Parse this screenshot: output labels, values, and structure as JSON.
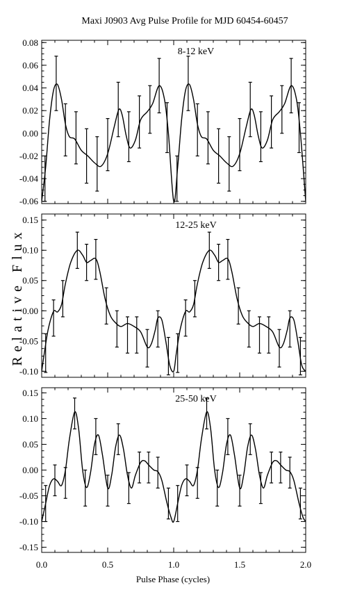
{
  "figure": {
    "title": "Maxi J0903 Avg Pulse Profile for MJD 60454-60457",
    "ylabel": "Relative Flux",
    "xlabel": "Pulse Phase (cycles)",
    "x_ticks": [
      "0.0",
      "0.5",
      "1.0",
      "1.5",
      "2.0"
    ]
  },
  "chart_data": [
    {
      "type": "line",
      "label": "8-12 keV",
      "xlim": [
        0,
        2
      ],
      "ylim": [
        -0.062,
        0.082
      ],
      "y_ticks": [
        -0.06,
        -0.04,
        -0.02,
        0.0,
        0.02,
        0.04,
        0.06,
        0.08
      ],
      "y_tick_labels": [
        "-0.06",
        "-0.04",
        "-0.02",
        "0.00",
        "0.02",
        "0.04",
        "0.06",
        "0.08"
      ],
      "points": [
        {
          "x": 0.025,
          "y": -0.04,
          "err": 0.02
        },
        {
          "x": 0.11,
          "y": 0.044,
          "err": 0.024
        },
        {
          "x": 0.18,
          "y": 0.003,
          "err": 0.023
        },
        {
          "x": 0.26,
          "y": -0.004,
          "err": 0.023
        },
        {
          "x": 0.34,
          "y": -0.02,
          "err": 0.024
        },
        {
          "x": 0.42,
          "y": -0.027,
          "err": 0.024
        },
        {
          "x": 0.5,
          "y": -0.01,
          "err": 0.023
        },
        {
          "x": 0.58,
          "y": 0.021,
          "err": 0.024
        },
        {
          "x": 0.66,
          "y": -0.003,
          "err": 0.022
        },
        {
          "x": 0.74,
          "y": 0.01,
          "err": 0.023
        },
        {
          "x": 0.82,
          "y": 0.021,
          "err": 0.021
        },
        {
          "x": 0.89,
          "y": 0.042,
          "err": 0.024
        },
        {
          "x": 0.95,
          "y": 0.005,
          "err": 0.022
        },
        {
          "x": 1.025,
          "y": -0.04,
          "err": 0.02
        },
        {
          "x": 1.11,
          "y": 0.044,
          "err": 0.024
        },
        {
          "x": 1.18,
          "y": 0.003,
          "err": 0.023
        },
        {
          "x": 1.26,
          "y": -0.004,
          "err": 0.023
        },
        {
          "x": 1.34,
          "y": -0.02,
          "err": 0.024
        },
        {
          "x": 1.42,
          "y": -0.027,
          "err": 0.024
        },
        {
          "x": 1.5,
          "y": -0.01,
          "err": 0.023
        },
        {
          "x": 1.58,
          "y": 0.021,
          "err": 0.024
        },
        {
          "x": 1.66,
          "y": -0.003,
          "err": 0.022
        },
        {
          "x": 1.74,
          "y": 0.01,
          "err": 0.023
        },
        {
          "x": 1.82,
          "y": 0.021,
          "err": 0.021
        },
        {
          "x": 1.89,
          "y": 0.042,
          "err": 0.024
        },
        {
          "x": 1.95,
          "y": 0.005,
          "err": 0.022
        }
      ],
      "curve": [
        [
          0.0,
          -0.06
        ],
        [
          0.03,
          -0.03
        ],
        [
          0.06,
          0.012
        ],
        [
          0.09,
          0.038
        ],
        [
          0.12,
          0.043
        ],
        [
          0.15,
          0.03
        ],
        [
          0.18,
          0.008
        ],
        [
          0.21,
          -0.003
        ],
        [
          0.25,
          -0.005
        ],
        [
          0.3,
          -0.015
        ],
        [
          0.35,
          -0.02
        ],
        [
          0.4,
          -0.026
        ],
        [
          0.45,
          -0.029
        ],
        [
          0.5,
          -0.018
        ],
        [
          0.55,
          0.006
        ],
        [
          0.585,
          0.021
        ],
        [
          0.61,
          0.016
        ],
        [
          0.64,
          -0.002
        ],
        [
          0.67,
          -0.013
        ],
        [
          0.71,
          -0.006
        ],
        [
          0.75,
          0.012
        ],
        [
          0.8,
          0.019
        ],
        [
          0.84,
          0.026
        ],
        [
          0.89,
          0.042
        ],
        [
          0.93,
          0.03
        ],
        [
          0.96,
          0.0
        ],
        [
          1.0,
          -0.06
        ],
        [
          1.03,
          -0.03
        ],
        [
          1.06,
          0.012
        ],
        [
          1.09,
          0.038
        ],
        [
          1.12,
          0.043
        ],
        [
          1.15,
          0.03
        ],
        [
          1.18,
          0.008
        ],
        [
          1.21,
          -0.003
        ],
        [
          1.25,
          -0.005
        ],
        [
          1.3,
          -0.015
        ],
        [
          1.35,
          -0.02
        ],
        [
          1.4,
          -0.026
        ],
        [
          1.45,
          -0.029
        ],
        [
          1.5,
          -0.018
        ],
        [
          1.55,
          0.006
        ],
        [
          1.585,
          0.021
        ],
        [
          1.61,
          0.016
        ],
        [
          1.64,
          -0.002
        ],
        [
          1.67,
          -0.013
        ],
        [
          1.71,
          -0.006
        ],
        [
          1.75,
          0.012
        ],
        [
          1.8,
          0.019
        ],
        [
          1.84,
          0.026
        ],
        [
          1.89,
          0.042
        ],
        [
          1.93,
          0.03
        ],
        [
          1.96,
          0.0
        ],
        [
          2.0,
          -0.06
        ]
      ]
    },
    {
      "type": "line",
      "label": "12-25 keV",
      "xlim": [
        0,
        2
      ],
      "ylim": [
        -0.11,
        0.16
      ],
      "y_ticks": [
        -0.1,
        -0.05,
        0.0,
        0.05,
        0.1,
        0.15
      ],
      "y_tick_labels": [
        "-0.10",
        "-0.05",
        "0.00",
        "0.05",
        "0.10",
        "0.15"
      ],
      "points": [
        {
          "x": 0.03,
          "y": -0.07,
          "err": 0.032
        },
        {
          "x": 0.09,
          "y": -0.012,
          "err": 0.03
        },
        {
          "x": 0.16,
          "y": 0.02,
          "err": 0.03
        },
        {
          "x": 0.27,
          "y": 0.1,
          "err": 0.03
        },
        {
          "x": 0.34,
          "y": 0.08,
          "err": 0.03
        },
        {
          "x": 0.41,
          "y": 0.085,
          "err": 0.033
        },
        {
          "x": 0.49,
          "y": 0.008,
          "err": 0.03
        },
        {
          "x": 0.57,
          "y": -0.03,
          "err": 0.03
        },
        {
          "x": 0.65,
          "y": -0.04,
          "err": 0.03
        },
        {
          "x": 0.72,
          "y": -0.04,
          "err": 0.03
        },
        {
          "x": 0.8,
          "y": -0.062,
          "err": 0.031
        },
        {
          "x": 0.88,
          "y": -0.03,
          "err": 0.03
        },
        {
          "x": 0.96,
          "y": -0.075,
          "err": 0.031
        },
        {
          "x": 1.03,
          "y": -0.07,
          "err": 0.032
        },
        {
          "x": 1.09,
          "y": -0.012,
          "err": 0.03
        },
        {
          "x": 1.16,
          "y": 0.02,
          "err": 0.03
        },
        {
          "x": 1.27,
          "y": 0.1,
          "err": 0.03
        },
        {
          "x": 1.34,
          "y": 0.08,
          "err": 0.03
        },
        {
          "x": 1.41,
          "y": 0.085,
          "err": 0.033
        },
        {
          "x": 1.49,
          "y": 0.008,
          "err": 0.03
        },
        {
          "x": 1.57,
          "y": -0.03,
          "err": 0.03
        },
        {
          "x": 1.65,
          "y": -0.04,
          "err": 0.03
        },
        {
          "x": 1.72,
          "y": -0.04,
          "err": 0.03
        },
        {
          "x": 1.8,
          "y": -0.062,
          "err": 0.031
        },
        {
          "x": 1.88,
          "y": -0.03,
          "err": 0.03
        },
        {
          "x": 1.96,
          "y": -0.075,
          "err": 0.031
        }
      ],
      "curve": [
        [
          0.0,
          -0.1
        ],
        [
          0.02,
          -0.07
        ],
        [
          0.05,
          -0.03
        ],
        [
          0.09,
          -0.001
        ],
        [
          0.12,
          -0.002
        ],
        [
          0.15,
          0.01
        ],
        [
          0.18,
          0.045
        ],
        [
          0.22,
          0.08
        ],
        [
          0.27,
          0.1
        ],
        [
          0.31,
          0.092
        ],
        [
          0.34,
          0.08
        ],
        [
          0.37,
          0.083
        ],
        [
          0.41,
          0.086
        ],
        [
          0.44,
          0.065
        ],
        [
          0.48,
          0.02
        ],
        [
          0.52,
          -0.008
        ],
        [
          0.56,
          -0.02
        ],
        [
          0.6,
          -0.026
        ],
        [
          0.65,
          -0.021
        ],
        [
          0.7,
          -0.026
        ],
        [
          0.75,
          -0.035
        ],
        [
          0.8,
          -0.06
        ],
        [
          0.83,
          -0.055
        ],
        [
          0.86,
          -0.032
        ],
        [
          0.88,
          -0.012
        ],
        [
          0.91,
          -0.015
        ],
        [
          0.94,
          -0.05
        ],
        [
          0.97,
          -0.09
        ],
        [
          1.0,
          -0.1
        ],
        [
          1.02,
          -0.07
        ],
        [
          1.05,
          -0.03
        ],
        [
          1.09,
          -0.001
        ],
        [
          1.12,
          -0.002
        ],
        [
          1.15,
          0.01
        ],
        [
          1.18,
          0.045
        ],
        [
          1.22,
          0.08
        ],
        [
          1.27,
          0.1
        ],
        [
          1.31,
          0.092
        ],
        [
          1.34,
          0.08
        ],
        [
          1.37,
          0.083
        ],
        [
          1.41,
          0.086
        ],
        [
          1.44,
          0.065
        ],
        [
          1.48,
          0.02
        ],
        [
          1.52,
          -0.008
        ],
        [
          1.56,
          -0.02
        ],
        [
          1.6,
          -0.026
        ],
        [
          1.65,
          -0.021
        ],
        [
          1.7,
          -0.026
        ],
        [
          1.75,
          -0.035
        ],
        [
          1.8,
          -0.06
        ],
        [
          1.83,
          -0.055
        ],
        [
          1.86,
          -0.032
        ],
        [
          1.88,
          -0.012
        ],
        [
          1.91,
          -0.015
        ],
        [
          1.94,
          -0.05
        ],
        [
          1.97,
          -0.09
        ],
        [
          2.0,
          -0.1
        ]
      ]
    },
    {
      "type": "line",
      "label": "25-50 keV",
      "xlim": [
        0,
        2
      ],
      "ylim": [
        -0.16,
        0.16
      ],
      "y_ticks": [
        -0.15,
        -0.1,
        -0.05,
        0.0,
        0.05,
        0.1,
        0.15
      ],
      "y_tick_labels": [
        "-0.15",
        "-0.10",
        "-0.05",
        "0.00",
        "0.05",
        "0.10",
        "0.15"
      ],
      "points": [
        {
          "x": 0.03,
          "y": -0.065,
          "err": 0.035
        },
        {
          "x": 0.1,
          "y": -0.02,
          "err": 0.03
        },
        {
          "x": 0.18,
          "y": -0.025,
          "err": 0.03
        },
        {
          "x": 0.25,
          "y": 0.11,
          "err": 0.03
        },
        {
          "x": 0.33,
          "y": -0.035,
          "err": 0.035
        },
        {
          "x": 0.41,
          "y": 0.065,
          "err": 0.035
        },
        {
          "x": 0.5,
          "y": -0.04,
          "err": 0.03
        },
        {
          "x": 0.58,
          "y": 0.06,
          "err": 0.03
        },
        {
          "x": 0.66,
          "y": -0.035,
          "err": 0.03
        },
        {
          "x": 0.74,
          "y": 0.005,
          "err": 0.03
        },
        {
          "x": 0.81,
          "y": 0.005,
          "err": 0.03
        },
        {
          "x": 0.88,
          "y": -0.005,
          "err": 0.03
        },
        {
          "x": 0.96,
          "y": -0.065,
          "err": 0.03
        },
        {
          "x": 1.03,
          "y": -0.065,
          "err": 0.035
        },
        {
          "x": 1.1,
          "y": -0.02,
          "err": 0.03
        },
        {
          "x": 1.18,
          "y": -0.025,
          "err": 0.03
        },
        {
          "x": 1.25,
          "y": 0.11,
          "err": 0.03
        },
        {
          "x": 1.33,
          "y": -0.035,
          "err": 0.035
        },
        {
          "x": 1.41,
          "y": 0.065,
          "err": 0.035
        },
        {
          "x": 1.5,
          "y": -0.04,
          "err": 0.03
        },
        {
          "x": 1.58,
          "y": 0.06,
          "err": 0.03
        },
        {
          "x": 1.66,
          "y": -0.035,
          "err": 0.03
        },
        {
          "x": 1.74,
          "y": 0.005,
          "err": 0.03
        },
        {
          "x": 1.81,
          "y": 0.005,
          "err": 0.03
        },
        {
          "x": 1.88,
          "y": -0.005,
          "err": 0.03
        },
        {
          "x": 1.96,
          "y": -0.065,
          "err": 0.03
        }
      ],
      "curve": [
        [
          0.0,
          -0.1
        ],
        [
          0.03,
          -0.065
        ],
        [
          0.06,
          -0.03
        ],
        [
          0.09,
          -0.017
        ],
        [
          0.12,
          -0.022
        ],
        [
          0.15,
          -0.03
        ],
        [
          0.18,
          0.0
        ],
        [
          0.21,
          0.06
        ],
        [
          0.25,
          0.113
        ],
        [
          0.28,
          0.08
        ],
        [
          0.31,
          0.0
        ],
        [
          0.34,
          -0.034
        ],
        [
          0.37,
          -0.005
        ],
        [
          0.4,
          0.05
        ],
        [
          0.43,
          0.068
        ],
        [
          0.46,
          0.03
        ],
        [
          0.5,
          -0.035
        ],
        [
          0.53,
          -0.01
        ],
        [
          0.56,
          0.045
        ],
        [
          0.59,
          0.068
        ],
        [
          0.62,
          0.04
        ],
        [
          0.65,
          -0.01
        ],
        [
          0.68,
          -0.035
        ],
        [
          0.71,
          -0.01
        ],
        [
          0.75,
          0.015
        ],
        [
          0.78,
          0.018
        ],
        [
          0.81,
          0.01
        ],
        [
          0.85,
          0.0
        ],
        [
          0.88,
          -0.003
        ],
        [
          0.91,
          -0.02
        ],
        [
          0.95,
          -0.065
        ],
        [
          0.98,
          -0.092
        ],
        [
          1.0,
          -0.1
        ],
        [
          1.03,
          -0.065
        ],
        [
          1.06,
          -0.03
        ],
        [
          1.09,
          -0.017
        ],
        [
          1.12,
          -0.022
        ],
        [
          1.15,
          -0.03
        ],
        [
          1.18,
          0.0
        ],
        [
          1.21,
          0.06
        ],
        [
          1.25,
          0.113
        ],
        [
          1.28,
          0.08
        ],
        [
          1.31,
          0.0
        ],
        [
          1.34,
          -0.034
        ],
        [
          1.37,
          -0.005
        ],
        [
          1.4,
          0.05
        ],
        [
          1.43,
          0.068
        ],
        [
          1.46,
          0.03
        ],
        [
          1.5,
          -0.035
        ],
        [
          1.53,
          -0.01
        ],
        [
          1.56,
          0.045
        ],
        [
          1.59,
          0.068
        ],
        [
          1.62,
          0.04
        ],
        [
          1.65,
          -0.01
        ],
        [
          1.68,
          -0.035
        ],
        [
          1.71,
          -0.01
        ],
        [
          1.75,
          0.015
        ],
        [
          1.78,
          0.018
        ],
        [
          1.81,
          0.01
        ],
        [
          1.85,
          0.0
        ],
        [
          1.88,
          -0.003
        ],
        [
          1.91,
          -0.02
        ],
        [
          1.95,
          -0.065
        ],
        [
          1.98,
          -0.092
        ],
        [
          2.0,
          -0.1
        ]
      ]
    }
  ]
}
